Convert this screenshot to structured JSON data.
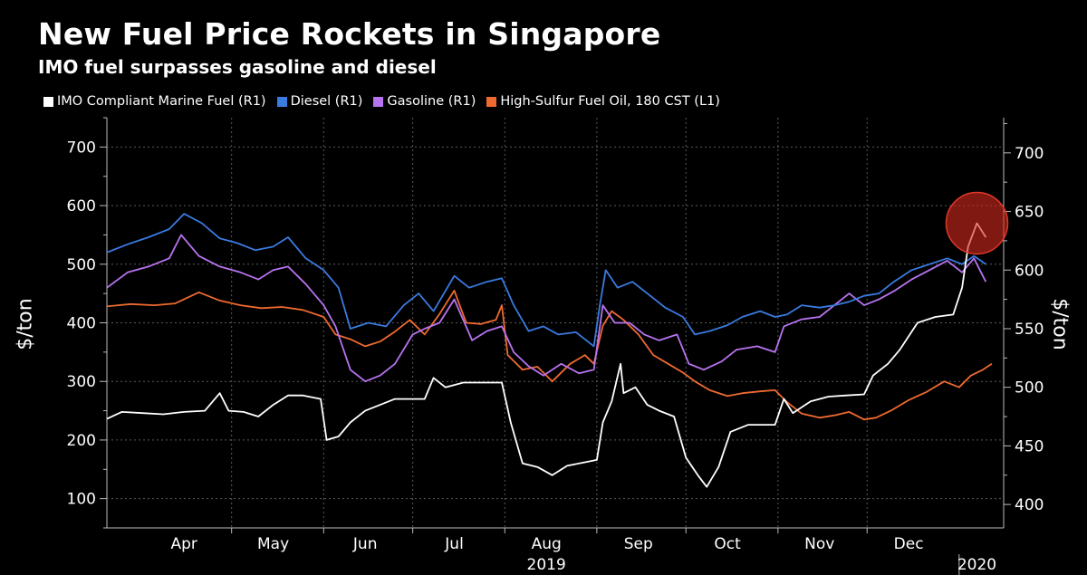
{
  "header": {
    "title": "New Fuel Price Rockets in Singapore",
    "subtitle": "IMO fuel surpasses gasoline and diesel"
  },
  "colors": {
    "background": "#000000",
    "imo": "#ffffff",
    "diesel": "#3a7be0",
    "gasoline": "#b874f0",
    "hsfo": "#ef6a30",
    "highlight": "#d42a1c",
    "grid": "#5a5a5a"
  },
  "chart_data": {
    "type": "line",
    "title": "New Fuel Price Rockets in Singapore",
    "subtitle": "IMO fuel surpasses gasoline and diesel",
    "ylabel_left": "$/ton",
    "ylabel_right": "$/ton",
    "ylim_left": [
      50,
      750
    ],
    "ylim_right": [
      380,
      730
    ],
    "yticks_left": [
      "100",
      "200",
      "300",
      "400",
      "500",
      "600",
      "700"
    ],
    "yticks_right": [
      "400",
      "450",
      "500",
      "550",
      "600",
      "650",
      "700"
    ],
    "xlim": [
      "2019-03-20",
      "2020-01-16"
    ],
    "xtick_labels": [
      "Apr",
      "May",
      "Jun",
      "Jul",
      "Aug",
      "Sep",
      "Oct",
      "Nov",
      "Dec"
    ],
    "xtick_positions": [
      "2019-04-15",
      "2019-05-15",
      "2019-06-15",
      "2019-07-15",
      "2019-08-15",
      "2019-09-15",
      "2019-10-15",
      "2019-11-15",
      "2019-12-15"
    ],
    "month_boundaries": [
      "2019-05-01",
      "2019-06-01",
      "2019-07-01",
      "2019-08-01",
      "2019-09-01",
      "2019-10-01",
      "2019-11-01",
      "2019-12-01"
    ],
    "year_labels": [
      {
        "label": "2019",
        "at": "2019-08-15"
      },
      {
        "label": "2020",
        "at": "2020-01-07",
        "divider": "2020-01-01"
      }
    ],
    "grid": true,
    "legend_position": "top",
    "highlight": {
      "shape": "circle",
      "date": "2020-01-07",
      "value_right": 640
    },
    "series": [
      {
        "name": "IMO Compliant Marine Fuel (R1)",
        "axis": "right",
        "color": "#ffffff",
        "points": [
          [
            "2019-03-20",
            473
          ],
          [
            "2019-03-25",
            479
          ],
          [
            "2019-04-01",
            478
          ],
          [
            "2019-04-08",
            477
          ],
          [
            "2019-04-15",
            479
          ],
          [
            "2019-04-22",
            480
          ],
          [
            "2019-04-27",
            495
          ],
          [
            "2019-04-30",
            480
          ],
          [
            "2019-05-05",
            479
          ],
          [
            "2019-05-10",
            475
          ],
          [
            "2019-05-15",
            485
          ],
          [
            "2019-05-20",
            493
          ],
          [
            "2019-05-25",
            493
          ],
          [
            "2019-05-31",
            490
          ],
          [
            "2019-06-02",
            455
          ],
          [
            "2019-06-06",
            458
          ],
          [
            "2019-06-10",
            470
          ],
          [
            "2019-06-15",
            480
          ],
          [
            "2019-06-20",
            485
          ],
          [
            "2019-06-25",
            490
          ],
          [
            "2019-06-30",
            490
          ],
          [
            "2019-07-05",
            490
          ],
          [
            "2019-07-08",
            508
          ],
          [
            "2019-07-12",
            500
          ],
          [
            "2019-07-18",
            504
          ],
          [
            "2019-07-25",
            504
          ],
          [
            "2019-07-31",
            504
          ],
          [
            "2019-08-03",
            470
          ],
          [
            "2019-08-07",
            435
          ],
          [
            "2019-08-12",
            432
          ],
          [
            "2019-08-17",
            425
          ],
          [
            "2019-08-22",
            433
          ],
          [
            "2019-08-28",
            436
          ],
          [
            "2019-09-01",
            438
          ],
          [
            "2019-09-03",
            470
          ],
          [
            "2019-09-06",
            488
          ],
          [
            "2019-09-09",
            520
          ],
          [
            "2019-09-10",
            495
          ],
          [
            "2019-09-14",
            500
          ],
          [
            "2019-09-18",
            485
          ],
          [
            "2019-09-22",
            480
          ],
          [
            "2019-09-27",
            475
          ],
          [
            "2019-10-01",
            440
          ],
          [
            "2019-10-05",
            425
          ],
          [
            "2019-10-08",
            415
          ],
          [
            "2019-10-12",
            432
          ],
          [
            "2019-10-16",
            462
          ],
          [
            "2019-10-22",
            468
          ],
          [
            "2019-10-28",
            468
          ],
          [
            "2019-10-31",
            468
          ],
          [
            "2019-11-03",
            490
          ],
          [
            "2019-11-06",
            478
          ],
          [
            "2019-11-12",
            488
          ],
          [
            "2019-11-18",
            492
          ],
          [
            "2019-11-24",
            493
          ],
          [
            "2019-11-30",
            494
          ],
          [
            "2019-12-03",
            510
          ],
          [
            "2019-12-08",
            520
          ],
          [
            "2019-12-12",
            532
          ],
          [
            "2019-12-18",
            555
          ],
          [
            "2019-12-24",
            560
          ],
          [
            "2019-12-30",
            562
          ],
          [
            "2020-01-02",
            585
          ],
          [
            "2020-01-04",
            620
          ],
          [
            "2020-01-07",
            640
          ],
          [
            "2020-01-10",
            628
          ]
        ]
      },
      {
        "name": "Diesel (R1)",
        "axis": "right",
        "color": "#3a7be0",
        "points": [
          [
            "2019-03-20",
            615
          ],
          [
            "2019-03-27",
            622
          ],
          [
            "2019-04-03",
            628
          ],
          [
            "2019-04-10",
            635
          ],
          [
            "2019-04-15",
            648
          ],
          [
            "2019-04-21",
            640
          ],
          [
            "2019-04-27",
            627
          ],
          [
            "2019-05-03",
            623
          ],
          [
            "2019-05-09",
            617
          ],
          [
            "2019-05-15",
            620
          ],
          [
            "2019-05-20",
            628
          ],
          [
            "2019-05-26",
            610
          ],
          [
            "2019-06-01",
            600
          ],
          [
            "2019-06-06",
            585
          ],
          [
            "2019-06-10",
            550
          ],
          [
            "2019-06-16",
            555
          ],
          [
            "2019-06-22",
            552
          ],
          [
            "2019-06-28",
            570
          ],
          [
            "2019-07-03",
            580
          ],
          [
            "2019-07-08",
            565
          ],
          [
            "2019-07-15",
            595
          ],
          [
            "2019-07-20",
            585
          ],
          [
            "2019-07-26",
            590
          ],
          [
            "2019-07-31",
            593
          ],
          [
            "2019-08-04",
            570
          ],
          [
            "2019-08-09",
            548
          ],
          [
            "2019-08-14",
            552
          ],
          [
            "2019-08-19",
            545
          ],
          [
            "2019-08-25",
            547
          ],
          [
            "2019-08-31",
            535
          ],
          [
            "2019-09-02",
            570
          ],
          [
            "2019-09-04",
            600
          ],
          [
            "2019-09-08",
            585
          ],
          [
            "2019-09-13",
            590
          ],
          [
            "2019-09-18",
            580
          ],
          [
            "2019-09-24",
            568
          ],
          [
            "2019-09-30",
            560
          ],
          [
            "2019-10-04",
            545
          ],
          [
            "2019-10-09",
            548
          ],
          [
            "2019-10-15",
            553
          ],
          [
            "2019-10-20",
            560
          ],
          [
            "2019-10-26",
            565
          ],
          [
            "2019-10-31",
            560
          ],
          [
            "2019-11-04",
            562
          ],
          [
            "2019-11-09",
            570
          ],
          [
            "2019-11-15",
            568
          ],
          [
            "2019-11-20",
            570
          ],
          [
            "2019-11-25",
            573
          ],
          [
            "2019-11-30",
            578
          ],
          [
            "2019-12-05",
            580
          ],
          [
            "2019-12-10",
            590
          ],
          [
            "2019-12-16",
            600
          ],
          [
            "2019-12-22",
            605
          ],
          [
            "2019-12-28",
            610
          ],
          [
            "2020-01-02",
            605
          ],
          [
            "2020-01-06",
            612
          ],
          [
            "2020-01-10",
            605
          ]
        ]
      },
      {
        "name": "Gasoline (R1)",
        "axis": "right",
        "color": "#b874f0",
        "points": [
          [
            "2019-03-20",
            585
          ],
          [
            "2019-03-27",
            598
          ],
          [
            "2019-04-03",
            603
          ],
          [
            "2019-04-10",
            610
          ],
          [
            "2019-04-14",
            630
          ],
          [
            "2019-04-20",
            612
          ],
          [
            "2019-04-27",
            603
          ],
          [
            "2019-05-04",
            598
          ],
          [
            "2019-05-10",
            592
          ],
          [
            "2019-05-15",
            600
          ],
          [
            "2019-05-20",
            603
          ],
          [
            "2019-05-26",
            588
          ],
          [
            "2019-06-01",
            570
          ],
          [
            "2019-06-05",
            552
          ],
          [
            "2019-06-10",
            515
          ],
          [
            "2019-06-15",
            505
          ],
          [
            "2019-06-20",
            510
          ],
          [
            "2019-06-25",
            520
          ],
          [
            "2019-07-01",
            545
          ],
          [
            "2019-07-05",
            550
          ],
          [
            "2019-07-10",
            555
          ],
          [
            "2019-07-15",
            575
          ],
          [
            "2019-07-21",
            540
          ],
          [
            "2019-07-26",
            548
          ],
          [
            "2019-07-31",
            552
          ],
          [
            "2019-08-04",
            530
          ],
          [
            "2019-08-09",
            518
          ],
          [
            "2019-08-14",
            510
          ],
          [
            "2019-08-20",
            520
          ],
          [
            "2019-08-26",
            512
          ],
          [
            "2019-08-31",
            515
          ],
          [
            "2019-09-03",
            570
          ],
          [
            "2019-09-07",
            555
          ],
          [
            "2019-09-12",
            555
          ],
          [
            "2019-09-17",
            545
          ],
          [
            "2019-09-22",
            540
          ],
          [
            "2019-09-28",
            545
          ],
          [
            "2019-10-02",
            520
          ],
          [
            "2019-10-07",
            515
          ],
          [
            "2019-10-13",
            522
          ],
          [
            "2019-10-18",
            532
          ],
          [
            "2019-10-25",
            535
          ],
          [
            "2019-10-31",
            530
          ],
          [
            "2019-11-03",
            552
          ],
          [
            "2019-11-09",
            558
          ],
          [
            "2019-11-15",
            560
          ],
          [
            "2019-11-20",
            570
          ],
          [
            "2019-11-25",
            580
          ],
          [
            "2019-11-30",
            570
          ],
          [
            "2019-12-05",
            575
          ],
          [
            "2019-12-10",
            582
          ],
          [
            "2019-12-16",
            592
          ],
          [
            "2019-12-22",
            600
          ],
          [
            "2019-12-28",
            608
          ],
          [
            "2020-01-02",
            598
          ],
          [
            "2020-01-06",
            610
          ],
          [
            "2020-01-10",
            590
          ]
        ]
      },
      {
        "name": "High-Sulfur Fuel Oil, 180 CST (L1)",
        "axis": "left",
        "color": "#ef6a30",
        "points": [
          [
            "2019-03-20",
            428
          ],
          [
            "2019-03-28",
            432
          ],
          [
            "2019-04-05",
            430
          ],
          [
            "2019-04-12",
            433
          ],
          [
            "2019-04-20",
            452
          ],
          [
            "2019-04-27",
            438
          ],
          [
            "2019-05-04",
            430
          ],
          [
            "2019-05-11",
            425
          ],
          [
            "2019-05-18",
            427
          ],
          [
            "2019-05-25",
            422
          ],
          [
            "2019-06-01",
            410
          ],
          [
            "2019-06-05",
            380
          ],
          [
            "2019-06-10",
            372
          ],
          [
            "2019-06-15",
            360
          ],
          [
            "2019-06-20",
            368
          ],
          [
            "2019-06-25",
            385
          ],
          [
            "2019-06-30",
            405
          ],
          [
            "2019-07-05",
            380
          ],
          [
            "2019-07-10",
            415
          ],
          [
            "2019-07-15",
            455
          ],
          [
            "2019-07-19",
            400
          ],
          [
            "2019-07-24",
            398
          ],
          [
            "2019-07-29",
            405
          ],
          [
            "2019-07-31",
            430
          ],
          [
            "2019-08-02",
            345
          ],
          [
            "2019-08-07",
            320
          ],
          [
            "2019-08-12",
            325
          ],
          [
            "2019-08-17",
            300
          ],
          [
            "2019-08-23",
            330
          ],
          [
            "2019-08-28",
            345
          ],
          [
            "2019-08-31",
            330
          ],
          [
            "2019-09-03",
            395
          ],
          [
            "2019-09-06",
            420
          ],
          [
            "2019-09-10",
            405
          ],
          [
            "2019-09-15",
            380
          ],
          [
            "2019-09-20",
            345
          ],
          [
            "2019-09-25",
            330
          ],
          [
            "2019-09-30",
            315
          ],
          [
            "2019-10-04",
            300
          ],
          [
            "2019-10-09",
            285
          ],
          [
            "2019-10-15",
            275
          ],
          [
            "2019-10-20",
            280
          ],
          [
            "2019-10-26",
            283
          ],
          [
            "2019-10-31",
            285
          ],
          [
            "2019-11-04",
            265
          ],
          [
            "2019-11-09",
            245
          ],
          [
            "2019-11-15",
            238
          ],
          [
            "2019-11-20",
            242
          ],
          [
            "2019-11-25",
            248
          ],
          [
            "2019-11-30",
            235
          ],
          [
            "2019-12-04",
            238
          ],
          [
            "2019-12-09",
            250
          ],
          [
            "2019-12-15",
            268
          ],
          [
            "2019-12-21",
            282
          ],
          [
            "2019-12-27",
            300
          ],
          [
            "2020-01-01",
            290
          ],
          [
            "2020-01-05",
            310
          ],
          [
            "2020-01-09",
            320
          ],
          [
            "2020-01-12",
            330
          ]
        ]
      }
    ]
  }
}
